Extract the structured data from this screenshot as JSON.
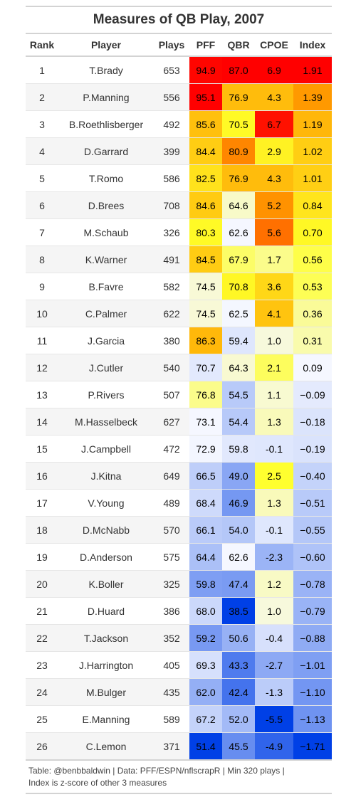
{
  "table": {
    "title": "Measures of QB Play, 2007",
    "columns": [
      "Rank",
      "Player",
      "Plays",
      "PFF",
      "QBR",
      "CPOE",
      "Index"
    ],
    "footer_line1": "Table: @benbbaldwin | Data: PFF/ESPN/nflscrapR | Min 320 plays |",
    "footer_line2": "Index is z-score of other 3 measures"
  },
  "colors": {
    "rule": "#d3d3d3",
    "stripe": "#f5f5f5"
  },
  "chart_data": {
    "type": "table",
    "title": "Measures of QB Play, 2007",
    "columns": [
      "Rank",
      "Player",
      "Plays",
      "PFF",
      "QBR",
      "CPOE",
      "Index"
    ],
    "rows": [
      {
        "rank": "1",
        "player": "T.Brady",
        "plays": "653",
        "pff": "94.9",
        "qbr": "87.0",
        "cpoe": "6.9",
        "index": "1.91"
      },
      {
        "rank": "2",
        "player": "P.Manning",
        "plays": "556",
        "pff": "95.1",
        "qbr": "76.9",
        "cpoe": "4.3",
        "index": "1.39"
      },
      {
        "rank": "3",
        "player": "B.Roethlisberger",
        "plays": "492",
        "pff": "85.6",
        "qbr": "70.5",
        "cpoe": "6.7",
        "index": "1.19"
      },
      {
        "rank": "4",
        "player": "D.Garrard",
        "plays": "399",
        "pff": "84.4",
        "qbr": "80.9",
        "cpoe": "2.9",
        "index": "1.02"
      },
      {
        "rank": "5",
        "player": "T.Romo",
        "plays": "586",
        "pff": "82.5",
        "qbr": "76.9",
        "cpoe": "4.3",
        "index": "1.01"
      },
      {
        "rank": "6",
        "player": "D.Brees",
        "plays": "708",
        "pff": "84.6",
        "qbr": "64.6",
        "cpoe": "5.2",
        "index": "0.84"
      },
      {
        "rank": "7",
        "player": "M.Schaub",
        "plays": "326",
        "pff": "80.3",
        "qbr": "62.6",
        "cpoe": "5.6",
        "index": "0.70"
      },
      {
        "rank": "8",
        "player": "K.Warner",
        "plays": "491",
        "pff": "84.5",
        "qbr": "67.9",
        "cpoe": "1.7",
        "index": "0.56"
      },
      {
        "rank": "9",
        "player": "B.Favre",
        "plays": "582",
        "pff": "74.5",
        "qbr": "70.8",
        "cpoe": "3.6",
        "index": "0.53"
      },
      {
        "rank": "10",
        "player": "C.Palmer",
        "plays": "622",
        "pff": "74.5",
        "qbr": "62.5",
        "cpoe": "4.1",
        "index": "0.36"
      },
      {
        "rank": "11",
        "player": "J.Garcia",
        "plays": "380",
        "pff": "86.3",
        "qbr": "59.4",
        "cpoe": "1.0",
        "index": "0.31"
      },
      {
        "rank": "12",
        "player": "J.Cutler",
        "plays": "540",
        "pff": "70.7",
        "qbr": "64.3",
        "cpoe": "2.1",
        "index": "0.09"
      },
      {
        "rank": "13",
        "player": "P.Rivers",
        "plays": "507",
        "pff": "76.8",
        "qbr": "54.5",
        "cpoe": "1.1",
        "index": "−0.09"
      },
      {
        "rank": "14",
        "player": "M.Hasselbeck",
        "plays": "627",
        "pff": "73.1",
        "qbr": "54.4",
        "cpoe": "1.3",
        "index": "−0.18"
      },
      {
        "rank": "15",
        "player": "J.Campbell",
        "plays": "472",
        "pff": "72.9",
        "qbr": "59.8",
        "cpoe": "-0.1",
        "index": "−0.19"
      },
      {
        "rank": "16",
        "player": "J.Kitna",
        "plays": "649",
        "pff": "66.5",
        "qbr": "49.0",
        "cpoe": "2.5",
        "index": "−0.40"
      },
      {
        "rank": "17",
        "player": "V.Young",
        "plays": "489",
        "pff": "68.4",
        "qbr": "46.9",
        "cpoe": "1.3",
        "index": "−0.51"
      },
      {
        "rank": "18",
        "player": "D.McNabb",
        "plays": "570",
        "pff": "66.1",
        "qbr": "54.0",
        "cpoe": "-0.1",
        "index": "−0.55"
      },
      {
        "rank": "19",
        "player": "D.Anderson",
        "plays": "575",
        "pff": "64.4",
        "qbr": "62.6",
        "cpoe": "-2.3",
        "index": "−0.60"
      },
      {
        "rank": "20",
        "player": "K.Boller",
        "plays": "325",
        "pff": "59.8",
        "qbr": "47.4",
        "cpoe": "1.2",
        "index": "−0.78"
      },
      {
        "rank": "21",
        "player": "D.Huard",
        "plays": "386",
        "pff": "68.0",
        "qbr": "38.5",
        "cpoe": "1.0",
        "index": "−0.79"
      },
      {
        "rank": "22",
        "player": "T.Jackson",
        "plays": "352",
        "pff": "59.2",
        "qbr": "50.6",
        "cpoe": "-0.4",
        "index": "−0.88"
      },
      {
        "rank": "23",
        "player": "J.Harrington",
        "plays": "405",
        "pff": "69.3",
        "qbr": "43.3",
        "cpoe": "-2.7",
        "index": "−1.01"
      },
      {
        "rank": "24",
        "player": "M.Bulger",
        "plays": "435",
        "pff": "62.0",
        "qbr": "42.4",
        "cpoe": "-1.3",
        "index": "−1.10"
      },
      {
        "rank": "25",
        "player": "E.Manning",
        "plays": "589",
        "pff": "67.2",
        "qbr": "52.0",
        "cpoe": "-5.5",
        "index": "−1.13"
      },
      {
        "rank": "26",
        "player": "C.Lemon",
        "plays": "371",
        "pff": "51.4",
        "qbr": "45.5",
        "cpoe": "-4.9",
        "index": "−1.71"
      }
    ]
  }
}
